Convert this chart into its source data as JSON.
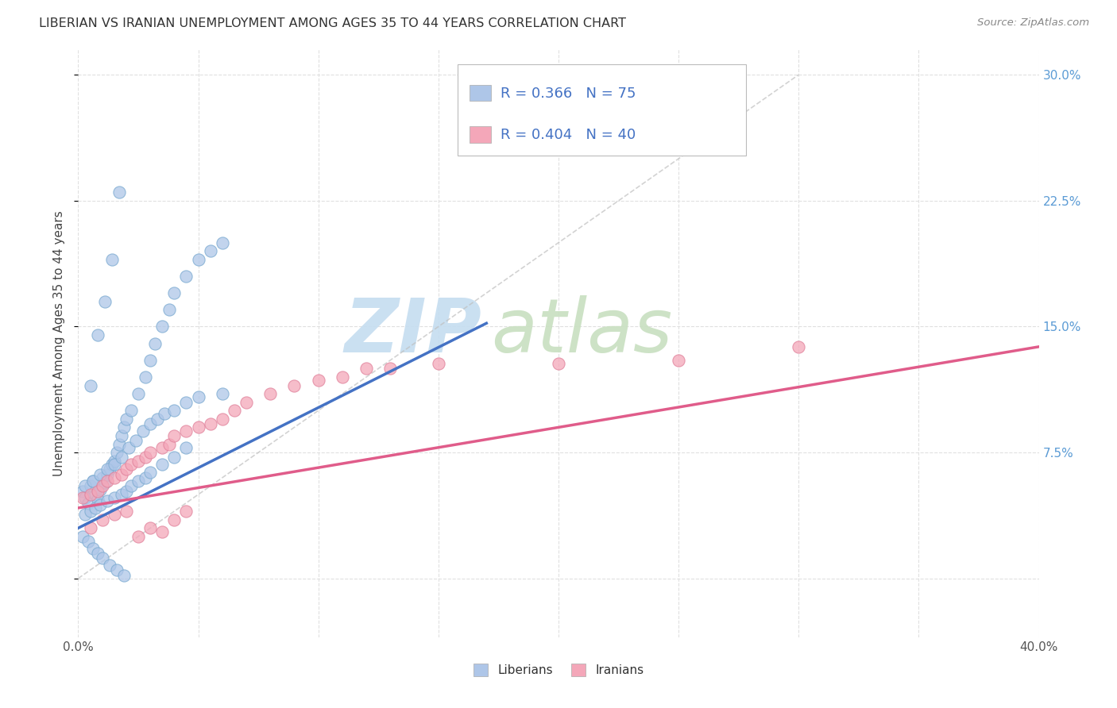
{
  "title": "LIBERIAN VS IRANIAN UNEMPLOYMENT AMONG AGES 35 TO 44 YEARS CORRELATION CHART",
  "source": "Source: ZipAtlas.com",
  "ylabel": "Unemployment Among Ages 35 to 44 years",
  "xlim": [
    0.0,
    0.4
  ],
  "ylim": [
    -0.035,
    0.315
  ],
  "xticks": [
    0.0,
    0.05,
    0.1,
    0.15,
    0.2,
    0.25,
    0.3,
    0.35,
    0.4
  ],
  "yticks": [
    0.0,
    0.075,
    0.15,
    0.225,
    0.3
  ],
  "background_color": "#ffffff",
  "grid_color": "#e0e0e0",
  "liberian_color": "#aec6e8",
  "iranian_color": "#f4a7b9",
  "liberian_line_color": "#4472c4",
  "iranian_line_color": "#e05c8a",
  "diagonal_line_color": "#c0c0c0",
  "watermark_color_zip": "#c8dff0",
  "watermark_color_atlas": "#d5e8c8",
  "legend_label1": "Liberians",
  "legend_label2": "Iranians",
  "liberian_scatter_x": [
    0.002,
    0.003,
    0.004,
    0.005,
    0.006,
    0.007,
    0.008,
    0.009,
    0.01,
    0.011,
    0.012,
    0.013,
    0.014,
    0.015,
    0.016,
    0.017,
    0.018,
    0.019,
    0.02,
    0.022,
    0.025,
    0.028,
    0.03,
    0.032,
    0.035,
    0.038,
    0.04,
    0.045,
    0.05,
    0.055,
    0.06,
    0.003,
    0.005,
    0.007,
    0.009,
    0.012,
    0.015,
    0.018,
    0.02,
    0.022,
    0.025,
    0.028,
    0.03,
    0.035,
    0.04,
    0.045,
    0.002,
    0.004,
    0.006,
    0.008,
    0.01,
    0.013,
    0.016,
    0.019,
    0.003,
    0.006,
    0.009,
    0.012,
    0.015,
    0.018,
    0.021,
    0.024,
    0.027,
    0.03,
    0.033,
    0.036,
    0.04,
    0.045,
    0.05,
    0.06,
    0.005,
    0.008,
    0.011,
    0.014,
    0.017
  ],
  "liberian_scatter_y": [
    0.052,
    0.048,
    0.045,
    0.055,
    0.058,
    0.05,
    0.047,
    0.053,
    0.06,
    0.057,
    0.062,
    0.065,
    0.068,
    0.07,
    0.075,
    0.08,
    0.085,
    0.09,
    0.095,
    0.1,
    0.11,
    0.12,
    0.13,
    0.14,
    0.15,
    0.16,
    0.17,
    0.18,
    0.19,
    0.195,
    0.2,
    0.038,
    0.04,
    0.042,
    0.044,
    0.046,
    0.048,
    0.05,
    0.052,
    0.055,
    0.058,
    0.06,
    0.063,
    0.068,
    0.072,
    0.078,
    0.025,
    0.022,
    0.018,
    0.015,
    0.012,
    0.008,
    0.005,
    0.002,
    0.055,
    0.058,
    0.062,
    0.065,
    0.068,
    0.072,
    0.078,
    0.082,
    0.088,
    0.092,
    0.095,
    0.098,
    0.1,
    0.105,
    0.108,
    0.11,
    0.115,
    0.145,
    0.165,
    0.19,
    0.23
  ],
  "iranian_scatter_x": [
    0.002,
    0.005,
    0.008,
    0.01,
    0.012,
    0.015,
    0.018,
    0.02,
    0.022,
    0.025,
    0.028,
    0.03,
    0.035,
    0.038,
    0.04,
    0.045,
    0.05,
    0.055,
    0.06,
    0.065,
    0.07,
    0.08,
    0.09,
    0.1,
    0.11,
    0.12,
    0.13,
    0.15,
    0.2,
    0.25,
    0.3,
    0.005,
    0.01,
    0.015,
    0.02,
    0.025,
    0.03,
    0.035,
    0.04,
    0.045
  ],
  "iranian_scatter_y": [
    0.048,
    0.05,
    0.052,
    0.055,
    0.058,
    0.06,
    0.062,
    0.065,
    0.068,
    0.07,
    0.072,
    0.075,
    0.078,
    0.08,
    0.085,
    0.088,
    0.09,
    0.092,
    0.095,
    0.1,
    0.105,
    0.11,
    0.115,
    0.118,
    0.12,
    0.125,
    0.125,
    0.128,
    0.128,
    0.13,
    0.138,
    0.03,
    0.035,
    0.038,
    0.04,
    0.025,
    0.03,
    0.028,
    0.035,
    0.04
  ],
  "liberian_trend": [
    0.0,
    0.03,
    0.17,
    0.152
  ],
  "iranian_trend": [
    0.0,
    0.042,
    0.4,
    0.138
  ],
  "diagonal": [
    0.0,
    0.0,
    0.3,
    0.3
  ]
}
